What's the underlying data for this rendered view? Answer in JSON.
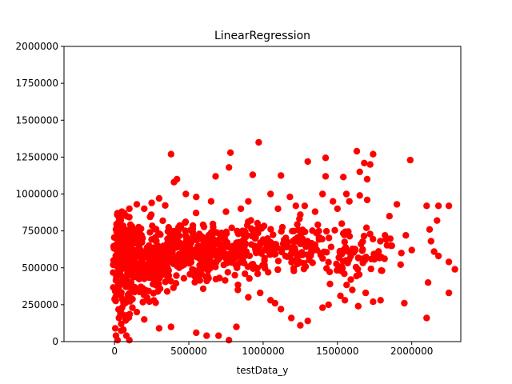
{
  "chart_data": {
    "type": "scatter",
    "title": "LinearRegression",
    "xlabel": "testData_y",
    "ylabel": "",
    "xlim": [
      -340000,
      2330000
    ],
    "ylim": [
      0,
      2000000
    ],
    "x_ticks": [
      {
        "value": 0,
        "label": "0"
      },
      {
        "value": 500000,
        "label": "500000"
      },
      {
        "value": 1000000,
        "label": "1000000"
      },
      {
        "value": 1500000,
        "label": "1500000"
      },
      {
        "value": 2000000,
        "label": "2000000"
      }
    ],
    "y_ticks": [
      {
        "value": 0,
        "label": "0"
      },
      {
        "value": 250000,
        "label": "250000"
      },
      {
        "value": 500000,
        "label": "500000"
      },
      {
        "value": 750000,
        "label": "750000"
      },
      {
        "value": 1000000,
        "label": "1000000"
      },
      {
        "value": 1250000,
        "label": "1250000"
      },
      {
        "value": 1500000,
        "label": "1500000"
      },
      {
        "value": 1750000,
        "label": "1750000"
      },
      {
        "value": 2000000,
        "label": "2000000"
      }
    ],
    "grid": false,
    "marker_color": "#ff0000",
    "points": [
      [
        380000,
        1270000
      ],
      [
        780000,
        1280000
      ],
      [
        970000,
        1350000
      ],
      [
        1630000,
        1290000
      ],
      [
        1740000,
        1270000
      ],
      [
        1990000,
        1230000
      ],
      [
        1300000,
        1220000
      ],
      [
        1420000,
        1245000
      ],
      [
        1680000,
        1210000
      ],
      [
        1720000,
        1200000
      ],
      [
        770000,
        1180000
      ],
      [
        400000,
        1080000
      ],
      [
        420000,
        1100000
      ],
      [
        680000,
        1120000
      ],
      [
        930000,
        1130000
      ],
      [
        1120000,
        1125000
      ],
      [
        1420000,
        1120000
      ],
      [
        1540000,
        1115000
      ],
      [
        1650000,
        1150000
      ],
      [
        1700000,
        1100000
      ],
      [
        2000000,
        620000
      ],
      [
        2100000,
        920000
      ],
      [
        2180000,
        920000
      ],
      [
        2250000,
        920000
      ],
      [
        2170000,
        820000
      ],
      [
        2120000,
        760000
      ],
      [
        2130000,
        680000
      ],
      [
        2150000,
        610000
      ],
      [
        2180000,
        580000
      ],
      [
        2250000,
        540000
      ],
      [
        2290000,
        490000
      ],
      [
        2250000,
        330000
      ],
      [
        2110000,
        400000
      ],
      [
        2100000,
        160000
      ],
      [
        1950000,
        260000
      ],
      [
        1930000,
        600000
      ],
      [
        1900000,
        930000
      ],
      [
        1960000,
        720000
      ],
      [
        1820000,
        720000
      ],
      [
        1850000,
        850000
      ],
      [
        1860000,
        650000
      ],
      [
        1800000,
        480000
      ],
      [
        1790000,
        280000
      ],
      [
        1740000,
        270000
      ],
      [
        1690000,
        330000
      ],
      [
        1640000,
        240000
      ],
      [
        1550000,
        280000
      ],
      [
        1520000,
        310000
      ],
      [
        1600000,
        350000
      ],
      [
        1590000,
        420000
      ],
      [
        1450000,
        390000
      ],
      [
        1440000,
        250000
      ],
      [
        1400000,
        230000
      ],
      [
        1300000,
        140000
      ],
      [
        1250000,
        110000
      ],
      [
        1190000,
        160000
      ],
      [
        1120000,
        220000
      ],
      [
        1080000,
        260000
      ],
      [
        1050000,
        280000
      ],
      [
        980000,
        330000
      ],
      [
        900000,
        300000
      ],
      [
        830000,
        350000
      ],
      [
        820000,
        100000
      ],
      [
        770000,
        10000
      ],
      [
        700000,
        40000
      ],
      [
        620000,
        40000
      ],
      [
        550000,
        60000
      ],
      [
        380000,
        100000
      ],
      [
        300000,
        90000
      ],
      [
        200000,
        150000
      ],
      [
        150000,
        200000
      ],
      [
        120000,
        230000
      ],
      [
        100000,
        10000
      ],
      [
        80000,
        40000
      ],
      [
        60000,
        80000
      ],
      [
        45000,
        120000
      ],
      [
        30000,
        160000
      ],
      [
        20000,
        10000
      ],
      [
        10000,
        40000
      ],
      [
        5000,
        90000
      ],
      [
        1050000,
        1000000
      ],
      [
        1180000,
        980000
      ],
      [
        1220000,
        920000
      ],
      [
        1280000,
        920000
      ],
      [
        1400000,
        1000000
      ],
      [
        1470000,
        950000
      ],
      [
        1560000,
        1000000
      ],
      [
        1650000,
        990000
      ],
      [
        1580000,
        950000
      ],
      [
        1700000,
        960000
      ],
      [
        1500000,
        900000
      ],
      [
        1350000,
        880000
      ],
      [
        1250000,
        860000
      ],
      [
        1100000,
        900000
      ],
      [
        900000,
        950000
      ],
      [
        850000,
        900000
      ],
      [
        750000,
        880000
      ],
      [
        650000,
        950000
      ],
      [
        550000,
        980000
      ],
      [
        480000,
        1000000
      ],
      [
        300000,
        970000
      ],
      [
        250000,
        940000
      ],
      [
        200000,
        900000
      ],
      [
        150000,
        930000
      ],
      [
        100000,
        900000
      ],
      [
        50000,
        880000
      ],
      [
        20000,
        870000
      ]
    ]
  }
}
